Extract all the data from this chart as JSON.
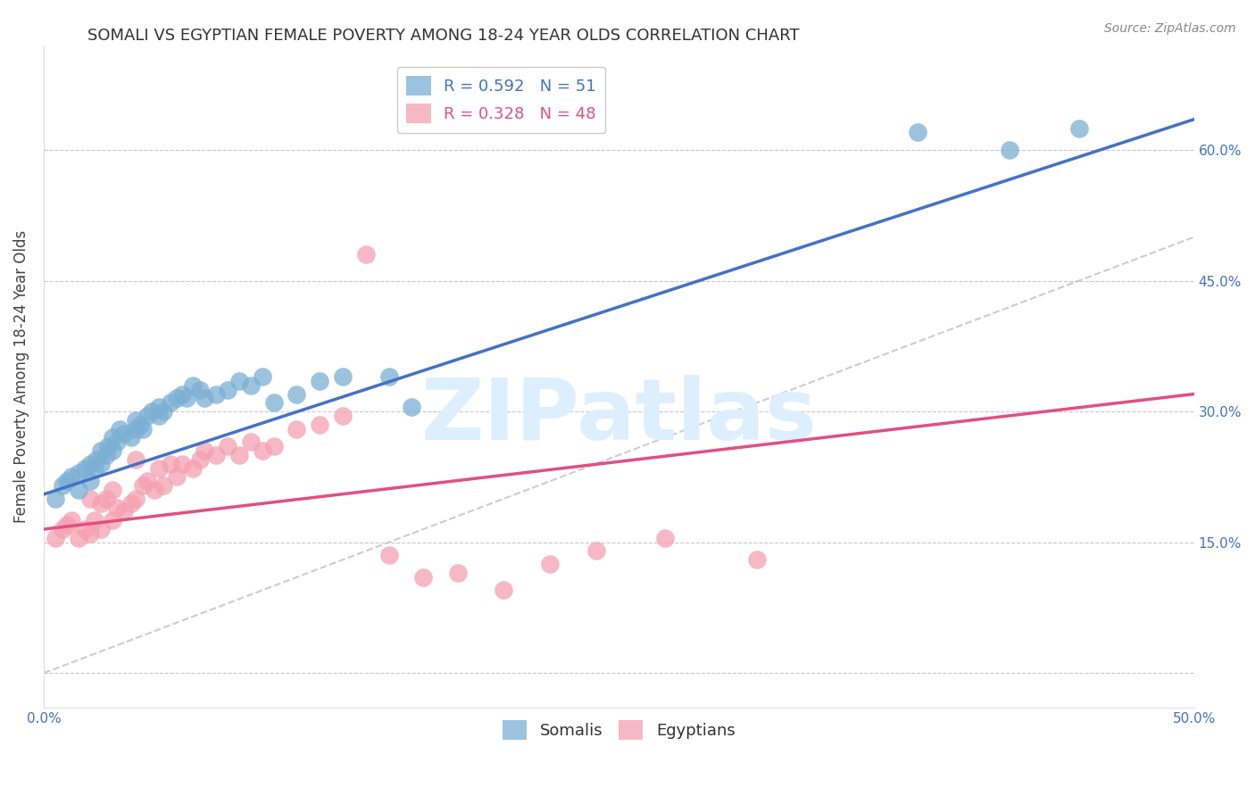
{
  "title": "SOMALI VS EGYPTIAN FEMALE POVERTY AMONG 18-24 YEAR OLDS CORRELATION CHART",
  "source": "Source: ZipAtlas.com",
  "ylabel": "Female Poverty Among 18-24 Year Olds",
  "xlim": [
    0.0,
    0.5
  ],
  "ylim": [
    -0.04,
    0.72
  ],
  "xticks": [
    0.0,
    0.5
  ],
  "xtick_labels": [
    "0.0%",
    "50.0%"
  ],
  "yticks": [
    0.0,
    0.15,
    0.3,
    0.45,
    0.6
  ],
  "ytick_labels_right": [
    "",
    "15.0%",
    "30.0%",
    "45.0%",
    "60.0%"
  ],
  "background_color": "#ffffff",
  "grid_color": "#c8c8c8",
  "somali_color": "#7bafd4",
  "egyptian_color": "#f4a0b0",
  "somali_line_color": "#4472c4",
  "egyptian_line_color": "#e05080",
  "diagonal_color": "#c0c0c0",
  "watermark_text": "ZIPatlas",
  "watermark_color": "#ddeeff",
  "legend_R_somali": "R = 0.592",
  "legend_N_somali": "N = 51",
  "legend_R_egyptian": "R = 0.328",
  "legend_N_egyptian": "N = 48",
  "somali_color_legend": "#7bafd4",
  "egyptian_color_legend": "#f4a0b0",
  "somali_x": [
    0.005,
    0.008,
    0.01,
    0.012,
    0.015,
    0.015,
    0.018,
    0.02,
    0.02,
    0.022,
    0.023,
    0.025,
    0.025,
    0.027,
    0.028,
    0.03,
    0.03,
    0.032,
    0.033,
    0.035,
    0.038,
    0.04,
    0.04,
    0.042,
    0.043,
    0.045,
    0.047,
    0.05,
    0.05,
    0.052,
    0.055,
    0.058,
    0.06,
    0.062,
    0.065,
    0.068,
    0.07,
    0.075,
    0.08,
    0.085,
    0.09,
    0.095,
    0.1,
    0.11,
    0.12,
    0.13,
    0.15,
    0.16,
    0.38,
    0.42,
    0.45
  ],
  "somali_y": [
    0.2,
    0.215,
    0.22,
    0.225,
    0.21,
    0.23,
    0.235,
    0.22,
    0.24,
    0.235,
    0.245,
    0.24,
    0.255,
    0.25,
    0.26,
    0.255,
    0.27,
    0.265,
    0.28,
    0.275,
    0.27,
    0.28,
    0.29,
    0.285,
    0.28,
    0.295,
    0.3,
    0.295,
    0.305,
    0.3,
    0.31,
    0.315,
    0.32,
    0.315,
    0.33,
    0.325,
    0.315,
    0.32,
    0.325,
    0.335,
    0.33,
    0.34,
    0.31,
    0.32,
    0.335,
    0.34,
    0.34,
    0.305,
    0.62,
    0.6,
    0.625
  ],
  "egyptian_x": [
    0.005,
    0.008,
    0.01,
    0.012,
    0.015,
    0.018,
    0.02,
    0.02,
    0.022,
    0.025,
    0.025,
    0.027,
    0.03,
    0.03,
    0.032,
    0.035,
    0.038,
    0.04,
    0.04,
    0.043,
    0.045,
    0.048,
    0.05,
    0.052,
    0.055,
    0.058,
    0.06,
    0.065,
    0.068,
    0.07,
    0.075,
    0.08,
    0.085,
    0.09,
    0.095,
    0.1,
    0.11,
    0.12,
    0.13,
    0.14,
    0.15,
    0.165,
    0.18,
    0.2,
    0.22,
    0.24,
    0.27,
    0.31
  ],
  "egyptian_y": [
    0.155,
    0.165,
    0.17,
    0.175,
    0.155,
    0.165,
    0.16,
    0.2,
    0.175,
    0.165,
    0.195,
    0.2,
    0.175,
    0.21,
    0.19,
    0.185,
    0.195,
    0.2,
    0.245,
    0.215,
    0.22,
    0.21,
    0.235,
    0.215,
    0.24,
    0.225,
    0.24,
    0.235,
    0.245,
    0.255,
    0.25,
    0.26,
    0.25,
    0.265,
    0.255,
    0.26,
    0.28,
    0.285,
    0.295,
    0.48,
    0.135,
    0.11,
    0.115,
    0.095,
    0.125,
    0.14,
    0.155,
    0.13
  ],
  "title_fontsize": 13,
  "axis_label_fontsize": 12,
  "tick_fontsize": 11,
  "legend_fontsize": 13,
  "somali_line_x0": 0.0,
  "somali_line_y0": 0.205,
  "somali_line_x1": 0.5,
  "somali_line_y1": 0.635,
  "egyptian_line_x0": 0.0,
  "egyptian_line_y0": 0.165,
  "egyptian_line_x1": 0.5,
  "egyptian_line_y1": 0.32
}
